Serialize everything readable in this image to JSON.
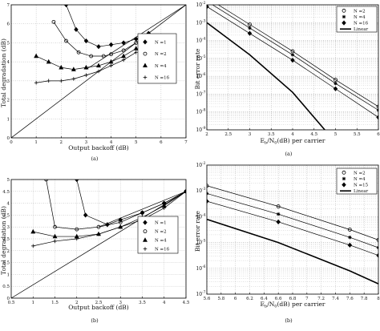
{
  "chart_data": [
    {
      "id": "tl",
      "panel_label": "(a)",
      "type": "line",
      "xlabel": "Output backoff (dB)",
      "ylabel": "Total degradation (dB)",
      "xlim": [
        0,
        7
      ],
      "ylim": [
        0,
        7
      ],
      "xticks": [
        "0",
        "1",
        "2",
        "3",
        "4",
        "5",
        "6",
        "7"
      ],
      "yticks": [
        "0",
        "1",
        "2",
        "3",
        "4",
        "5",
        "6",
        "7"
      ],
      "grid": true,
      "legend_position": "right",
      "series": [
        {
          "name": "N =1",
          "marker": "diamond",
          "x": [
            2.2,
            2.6,
            3.0,
            3.5,
            4.0,
            4.5,
            5.0,
            5.5
          ],
          "y": [
            7.0,
            5.7,
            5.1,
            4.8,
            4.9,
            5.0,
            5.2,
            5.5
          ]
        },
        {
          "name": "N =2",
          "marker": "circle",
          "x": [
            1.7,
            2.2,
            2.7,
            3.2,
            3.7,
            4.0,
            4.5,
            5.0
          ],
          "y": [
            6.1,
            5.1,
            4.5,
            4.3,
            4.3,
            4.4,
            4.6,
            5.0
          ]
        },
        {
          "name": "N =4",
          "marker": "triangle",
          "x": [
            1.0,
            1.5,
            2.0,
            2.5,
            3.0,
            3.5,
            4.0,
            4.5,
            5.0
          ],
          "y": [
            4.3,
            4.0,
            3.7,
            3.6,
            3.7,
            3.8,
            4.0,
            4.3,
            4.7
          ]
        },
        {
          "name": "N =16",
          "marker": "plus",
          "x": [
            1.0,
            1.5,
            2.0,
            2.5,
            3.0,
            3.5,
            4.0,
            4.5,
            5.0
          ],
          "y": [
            2.9,
            3.0,
            3.0,
            3.1,
            3.3,
            3.5,
            3.8,
            4.1,
            4.5
          ]
        },
        {
          "name": "",
          "marker": "none",
          "x": [
            0,
            7
          ],
          "y": [
            0,
            7
          ]
        },
        {
          "name": "",
          "marker": "none",
          "x": [
            3.0,
            7.0
          ],
          "y": [
            3.6,
            7.0
          ]
        }
      ]
    },
    {
      "id": "tr",
      "panel_label": "(a)",
      "type": "line",
      "xlabel": "E_b/N_0 (dB) per carrier",
      "ylabel": "Bit error rate",
      "xlim": [
        2,
        6
      ],
      "ylim_exp": [
        -9,
        -2
      ],
      "yscale": "log",
      "xticks": [
        "2",
        "2.5",
        "3",
        "3.5",
        "4",
        "4.5",
        "5",
        "5.5",
        "6"
      ],
      "ytick_exps": [
        -2,
        -3,
        -4,
        -5,
        -6,
        -7,
        -8,
        -9
      ],
      "grid": true,
      "legend_position": "top-right",
      "series": [
        {
          "name": "N =2",
          "marker": "circle",
          "x": [
            2,
            3,
            4,
            5,
            6
          ],
          "y_exp": [
            -1.6,
            -3.1,
            -4.6,
            -6.2,
            -7.7
          ]
        },
        {
          "name": "N =4",
          "marker": "asterisk",
          "x": [
            2,
            3,
            4,
            5,
            6
          ],
          "y_exp": [
            -1.8,
            -3.3,
            -4.8,
            -6.4,
            -7.9
          ]
        },
        {
          "name": "N =16",
          "marker": "diamond",
          "x": [
            2,
            3,
            4,
            5,
            6
          ],
          "y_exp": [
            -2.1,
            -3.6,
            -5.1,
            -6.7,
            -8.3
          ]
        },
        {
          "name": "Linear",
          "marker": "none",
          "x": [
            2,
            3,
            4,
            4.75
          ],
          "y_exp": [
            -3.0,
            -4.8,
            -6.9,
            -9.0
          ]
        }
      ]
    },
    {
      "id": "bl",
      "panel_label": "(b)",
      "type": "line",
      "xlabel": "Output backoff (dB)",
      "ylabel": "Total degradation (dB)",
      "xlim": [
        0.5,
        4.5
      ],
      "ylim": [
        0,
        5
      ],
      "xticks": [
        "0.5",
        "1",
        "1.5",
        "2",
        "2.5",
        "3",
        "3.5",
        "4",
        "4.5"
      ],
      "yticks": [
        "0",
        "0.5",
        "1",
        "1.5",
        "2",
        "2.5",
        "3",
        "3.5",
        "4",
        "4.5",
        "5"
      ],
      "grid": true,
      "legend_position": "right",
      "series": [
        {
          "name": "N =1",
          "marker": "diamond",
          "x": [
            2.0,
            2.2,
            2.7,
            3.0,
            3.5,
            4.0,
            4.5
          ],
          "y": [
            5.0,
            3.5,
            3.1,
            3.3,
            3.6,
            4.0,
            4.5
          ]
        },
        {
          "name": "N =2",
          "marker": "circle",
          "x": [
            1.3,
            1.5,
            2.0,
            2.5,
            3.0,
            3.5,
            4.0,
            4.5
          ],
          "y": [
            5.0,
            3.0,
            2.9,
            3.0,
            3.2,
            3.6,
            4.0,
            4.5
          ]
        },
        {
          "name": "N =4",
          "marker": "triangle",
          "x": [
            1.0,
            1.5,
            2.0,
            2.5,
            3.0,
            3.5,
            4.0,
            4.5
          ],
          "y": [
            2.8,
            2.6,
            2.6,
            2.7,
            3.0,
            3.4,
            3.9,
            4.5
          ]
        },
        {
          "name": "N =16",
          "marker": "plus",
          "x": [
            1.0,
            1.5,
            2.0,
            2.5,
            3.0,
            3.5,
            4.0,
            4.5
          ],
          "y": [
            2.2,
            2.4,
            2.5,
            2.7,
            3.0,
            3.3,
            3.8,
            4.5
          ]
        },
        {
          "name": "",
          "marker": "none",
          "x": [
            0.5,
            4.5
          ],
          "y": [
            0.0,
            4.5
          ]
        },
        {
          "name": "",
          "marker": "none",
          "x": [
            2.5,
            4.5
          ],
          "y": [
            3.0,
            4.5
          ]
        }
      ]
    },
    {
      "id": "br",
      "panel_label": "(b)",
      "type": "line",
      "xlabel": "E_b/N_0 (dB) per carrier",
      "ylabel": "Bit error rate",
      "xlim": [
        5.6,
        8.0
      ],
      "ylim_exp": [
        -7,
        -2
      ],
      "yscale": "log",
      "xticks": [
        "5.6",
        "5.8",
        "6",
        "6.2",
        "6.4",
        "6.6",
        "6.8",
        "7",
        "7.2",
        "7.4",
        "7.6",
        "7.8",
        "8"
      ],
      "ytick_exps": [
        -2,
        -3,
        -4,
        -5,
        -6,
        -7
      ],
      "grid": true,
      "legend_position": "top-right",
      "series": [
        {
          "name": "N =2",
          "marker": "circle",
          "x": [
            5.6,
            6.6,
            7.6,
            8.0
          ],
          "y_exp": [
            -2.8,
            -3.6,
            -4.5,
            -4.9
          ]
        },
        {
          "name": "N =4",
          "marker": "asterisk",
          "x": [
            5.6,
            6.6,
            7.6,
            8.0
          ],
          "y_exp": [
            -3.1,
            -3.9,
            -4.8,
            -5.2
          ]
        },
        {
          "name": "N =15",
          "marker": "diamond",
          "x": [
            5.6,
            6.6,
            7.6,
            8.0
          ],
          "y_exp": [
            -3.4,
            -4.2,
            -5.1,
            -5.5
          ]
        },
        {
          "name": "Linear",
          "marker": "none",
          "x": [
            5.6,
            6.6,
            7.6,
            8.0
          ],
          "y_exp": [
            -4.1,
            -5.0,
            -6.1,
            -6.6
          ]
        }
      ]
    }
  ]
}
